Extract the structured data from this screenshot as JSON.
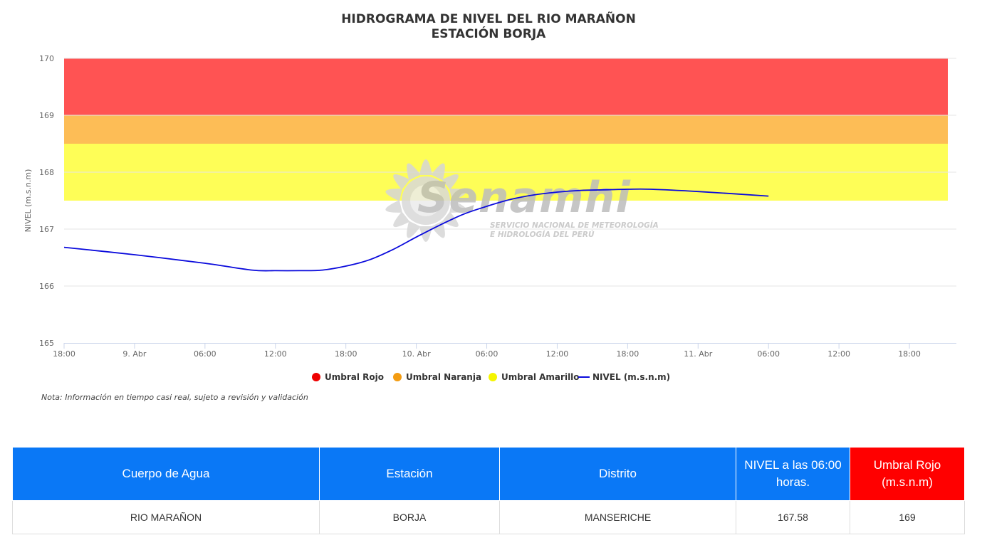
{
  "chart_data": {
    "type": "line",
    "title": "HIDROGRAMA DE NIVEL DEL RIO MARAÑON",
    "subtitle": "ESTACIÓN BORJA",
    "ylabel": "NIVEL (m.s.n.m)",
    "ylim": [
      165,
      170
    ],
    "y_ticks": [
      "165",
      "166",
      "167",
      "168",
      "169",
      "170"
    ],
    "x_ticks": [
      "18:00",
      "9. Abr",
      "06:00",
      "12:00",
      "18:00",
      "10. Abr",
      "06:00",
      "12:00",
      "18:00",
      "11. Abr",
      "06:00",
      "12:00",
      "18:00"
    ],
    "xlim": [
      "2025-04-08 18:00",
      "2025-04-11 22:00"
    ],
    "grid": true,
    "legend_position": "bottom-center",
    "bands": [
      {
        "name": "Umbral Rojo",
        "from": 169,
        "to": 170,
        "color": "#ff5353"
      },
      {
        "name": "Umbral Naranja",
        "from": 168.5,
        "to": 169,
        "color": "#fdbd56"
      },
      {
        "name": "Umbral Amarillo",
        "from": 167.5,
        "to": 168.5,
        "color": "#fefe57"
      }
    ],
    "series": [
      {
        "name": "NIVEL (m.s.n.m)",
        "color": "#0a0adc",
        "x": [
          "2025-04-08 18:00",
          "2025-04-09 00:00",
          "2025-04-09 06:00",
          "2025-04-09 10:00",
          "2025-04-09 12:00",
          "2025-04-09 14:00",
          "2025-04-09 16:00",
          "2025-04-09 18:00",
          "2025-04-09 20:00",
          "2025-04-09 22:00",
          "2025-04-10 00:00",
          "2025-04-10 02:00",
          "2025-04-10 04:00",
          "2025-04-10 06:00",
          "2025-04-10 08:00",
          "2025-04-10 10:00",
          "2025-04-10 12:00",
          "2025-04-10 14:00",
          "2025-04-10 16:00",
          "2025-04-10 18:00",
          "2025-04-10 20:00",
          "2025-04-11 00:00",
          "2025-04-11 06:00"
        ],
        "y": [
          166.68,
          166.55,
          166.4,
          166.28,
          166.27,
          166.27,
          166.28,
          166.35,
          166.46,
          166.64,
          166.86,
          167.07,
          167.26,
          167.4,
          167.52,
          167.6,
          167.65,
          167.68,
          167.69,
          167.7,
          167.7,
          167.66,
          167.58
        ]
      }
    ]
  },
  "legend": {
    "items": [
      {
        "label": "Umbral Rojo",
        "color": "#ee0000",
        "type": "dot"
      },
      {
        "label": "Umbral Naranja",
        "color": "#f39c12",
        "type": "dot"
      },
      {
        "label": "Umbral Amarillo",
        "color": "#f5f500",
        "type": "dot"
      },
      {
        "label": "NIVEL (m.s.n.m)",
        "color": "#0a0adc",
        "type": "line"
      }
    ]
  },
  "watermark": {
    "brand": "Senamhi",
    "line1": "SERVICIO NACIONAL DE METEOROLOGÍA",
    "line2": "E HIDROLOGÍA DEL PERÚ"
  },
  "note": "Nota: Información en tiempo casi real, sujeto a revisión y validación",
  "table": {
    "headers": [
      "Cuerpo de Agua",
      "Estación",
      "Distrito",
      "NIVEL a las 06:00 horas.",
      "Umbral Rojo (m.s.n.m)"
    ],
    "header_colors": [
      "#0a78f6",
      "#0a78f6",
      "#0a78f6",
      "#0a78f6",
      "#ff0000"
    ],
    "rows": [
      [
        "RIO MARAÑON",
        "BORJA",
        "MANSERICHE",
        "167.58",
        "169"
      ]
    ]
  }
}
